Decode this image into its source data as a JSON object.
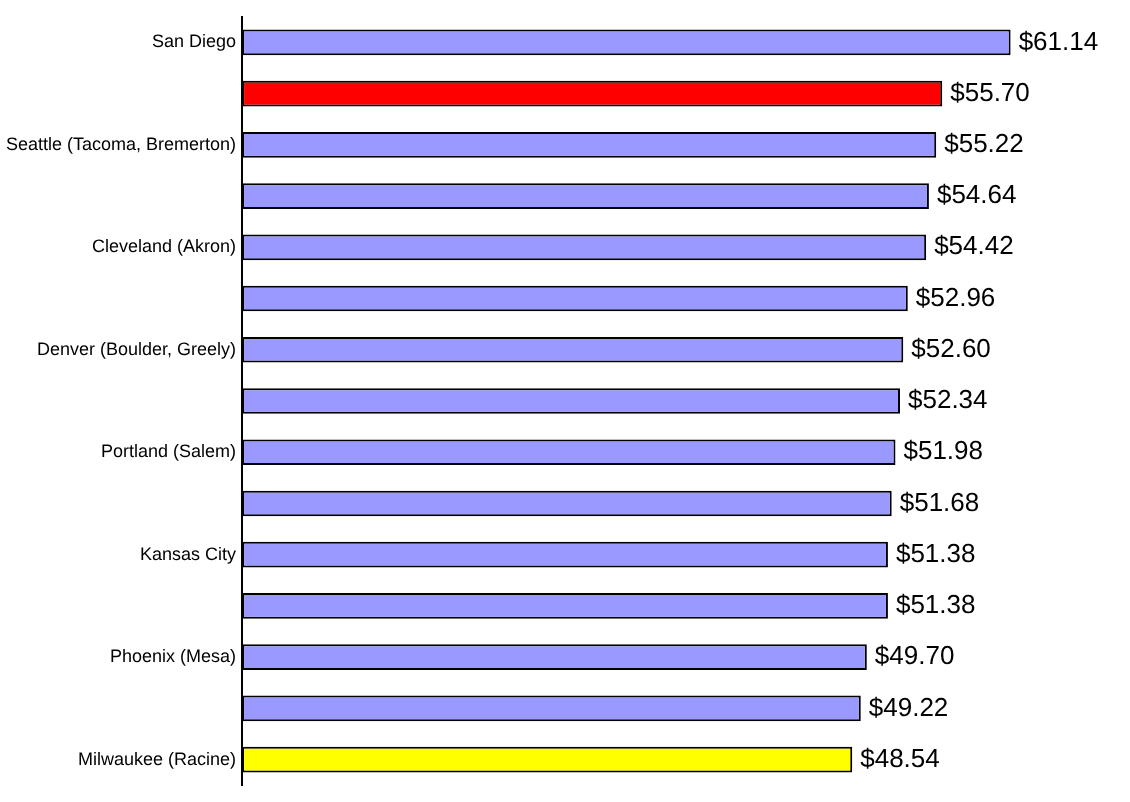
{
  "chart_data": {
    "type": "bar",
    "orientation": "horizontal",
    "categories": [
      "San Diego",
      null,
      "Seattle (Tacoma, Bremerton)",
      null,
      "Cleveland (Akron)",
      null,
      "Denver (Boulder, Greely)",
      null,
      "Portland (Salem)",
      null,
      "Kansas City",
      null,
      "Phoenix (Mesa)",
      null,
      "Milwaukee (Racine)"
    ],
    "values": [
      61.14,
      55.7,
      55.22,
      54.64,
      54.42,
      52.96,
      52.6,
      52.34,
      51.98,
      51.68,
      51.38,
      51.38,
      49.7,
      49.22,
      48.54
    ],
    "colors": [
      "#9999ff",
      "#ff0000",
      "#9999ff",
      "#9999ff",
      "#9999ff",
      "#9999ff",
      "#9999ff",
      "#9999ff",
      "#9999ff",
      "#9999ff",
      "#9999ff",
      "#9999ff",
      "#9999ff",
      "#9999ff",
      "#ffff00"
    ],
    "value_labels": [
      "$61.14",
      "$55.70",
      "$55.22",
      "$54.64",
      "$54.42",
      "$52.96",
      "$52.60",
      "$52.34",
      "$51.98",
      "$51.68",
      "$51.38",
      "$51.38",
      "$49.70",
      "$49.22",
      "$48.54"
    ],
    "tick_labels": "y",
    "grid": false,
    "legend": false
  }
}
